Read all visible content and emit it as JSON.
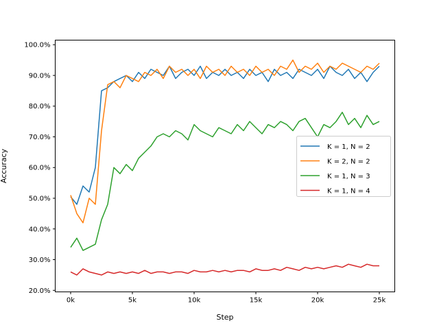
{
  "chart_data": {
    "type": "line",
    "title": "",
    "xlabel": "Step",
    "ylabel": "Accuracy",
    "xlim": [
      -1250,
      26250
    ],
    "ylim": [
      19.5,
      101.5
    ],
    "xticks": [
      0,
      5000,
      10000,
      15000,
      20000,
      25000
    ],
    "xtick_labels": [
      "0k",
      "5k",
      "10k",
      "15k",
      "20k",
      "25k"
    ],
    "yticks": [
      20,
      30,
      40,
      50,
      60,
      70,
      80,
      90,
      100
    ],
    "ytick_labels": [
      "20.0%",
      "30.0%",
      "40.0%",
      "50.0%",
      "60.0%",
      "70.0%",
      "80.0%",
      "90.0%",
      "100.0%"
    ],
    "legend_position": "center-right",
    "x": [
      0,
      500,
      1000,
      1500,
      2000,
      2500,
      3000,
      3500,
      4000,
      4500,
      5000,
      5500,
      6000,
      6500,
      7000,
      7500,
      8000,
      8500,
      9000,
      9500,
      10000,
      10500,
      11000,
      11500,
      12000,
      12500,
      13000,
      13500,
      14000,
      14500,
      15000,
      15500,
      16000,
      16500,
      17000,
      17500,
      18000,
      18500,
      19000,
      19500,
      20000,
      20500,
      21000,
      21500,
      22000,
      22500,
      23000,
      23500,
      24000,
      24500,
      25000
    ],
    "series": [
      {
        "name": "K = 1, N = 2",
        "color": "#1f77b4",
        "values": [
          50.5,
          48,
          54,
          52,
          60,
          85,
          86,
          88,
          89,
          90,
          88,
          91,
          89,
          92,
          91,
          90,
          93,
          89,
          91,
          92,
          90,
          93,
          89,
          91,
          90,
          92,
          90,
          91,
          89,
          92,
          90,
          91,
          88,
          92,
          90,
          91,
          89,
          92,
          91,
          90,
          92,
          89,
          93,
          91,
          90,
          92,
          89,
          91,
          88,
          91,
          93
        ]
      },
      {
        "name": "K = 2, N = 2",
        "color": "#ff7f0e",
        "values": [
          51,
          45,
          42,
          50,
          48,
          72,
          87,
          88,
          86,
          90,
          89,
          88,
          91,
          90,
          92,
          89,
          93,
          91,
          92,
          90,
          92,
          89,
          93,
          91,
          92,
          90,
          93,
          91,
          92,
          90,
          93,
          91,
          92,
          90,
          93,
          92,
          95,
          91,
          93,
          92,
          94,
          91,
          93,
          92,
          94,
          93,
          92,
          91,
          93,
          92,
          94
        ]
      },
      {
        "name": "K = 1, N = 3",
        "color": "#2ca02c",
        "values": [
          34,
          37,
          33,
          34,
          35,
          43,
          48,
          60,
          58,
          61,
          59,
          63,
          65,
          67,
          70,
          71,
          70,
          72,
          71,
          69,
          74,
          72,
          71,
          70,
          73,
          72,
          71,
          74,
          72,
          75,
          73,
          71,
          74,
          73,
          75,
          74,
          72,
          75,
          76,
          73,
          70,
          74,
          73,
          75,
          78,
          74,
          76,
          73,
          77,
          74,
          75
        ]
      },
      {
        "name": "K = 1, N = 4",
        "color": "#d62728",
        "values": [
          26,
          25,
          27,
          26,
          25.5,
          25,
          26,
          25.5,
          26,
          25.5,
          26,
          25.5,
          26.5,
          25.5,
          26,
          26,
          25.5,
          26,
          26,
          25.5,
          26.5,
          26,
          26,
          26.5,
          26,
          26.5,
          26,
          26.5,
          26.5,
          26,
          27,
          26.5,
          26.5,
          27,
          26.5,
          27.5,
          27,
          26.5,
          27.5,
          27,
          27.5,
          27,
          27.5,
          28,
          27.5,
          28.5,
          28,
          27.5,
          28.5,
          28,
          28
        ]
      }
    ]
  }
}
